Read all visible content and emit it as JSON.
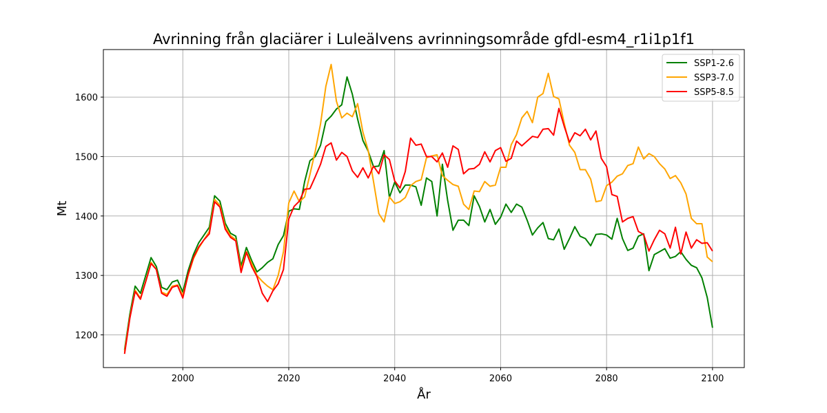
{
  "chart_data": {
    "type": "line",
    "title": "Avrinning från glaciärer i Luleälvens avrinningsområde gfdl-esm4_r1i1p1f1",
    "xlabel": "År",
    "ylabel": "Mt",
    "xlim": [
      1985,
      2106
    ],
    "ylim": [
      1145,
      1680
    ],
    "xticks": [
      2000,
      2020,
      2040,
      2060,
      2080,
      2100
    ],
    "yticks": [
      1200,
      1300,
      1400,
      1500,
      1600
    ],
    "grid": true,
    "legend_position": "top-right",
    "x": [
      1989,
      1990,
      1991,
      1992,
      1993,
      1994,
      1995,
      1996,
      1997,
      1998,
      1999,
      2000,
      2001,
      2002,
      2003,
      2004,
      2005,
      2006,
      2007,
      2008,
      2009,
      2010,
      2011,
      2012,
      2013,
      2014,
      2015,
      2016,
      2017,
      2018,
      2019,
      2020,
      2021,
      2022,
      2023,
      2024,
      2025,
      2026,
      2027,
      2028,
      2029,
      2030,
      2031,
      2032,
      2033,
      2034,
      2035,
      2036,
      2037,
      2038,
      2039,
      2040,
      2041,
      2042,
      2043,
      2044,
      2045,
      2046,
      2047,
      2048,
      2049,
      2050,
      2051,
      2052,
      2053,
      2054,
      2055,
      2056,
      2057,
      2058,
      2059,
      2060,
      2061,
      2062,
      2063,
      2064,
      2065,
      2066,
      2067,
      2068,
      2069,
      2070,
      2071,
      2072,
      2073,
      2074,
      2075,
      2076,
      2077,
      2078,
      2079,
      2080,
      2081,
      2082,
      2083,
      2084,
      2085,
      2086,
      2087,
      2088,
      2089,
      2090,
      2091,
      2092,
      2093,
      2094,
      2095,
      2096,
      2097,
      2098,
      2099,
      2100
    ],
    "series": [
      {
        "name": "SSP1-2.6",
        "color": "#008000",
        "values": [
          1175,
          1235,
          1282,
          1270,
          1300,
          1330,
          1315,
          1280,
          1276,
          1289,
          1292,
          1272,
          1308,
          1335,
          1355,
          1368,
          1381,
          1434,
          1425,
          1388,
          1371,
          1366,
          1316,
          1347,
          1325,
          1306,
          1313,
          1322,
          1328,
          1352,
          1367,
          1408,
          1412,
          1411,
          1458,
          1493,
          1500,
          1519,
          1559,
          1568,
          1580,
          1587,
          1634,
          1605,
          1563,
          1527,
          1509,
          1483,
          1484,
          1510,
          1431,
          1457,
          1439,
          1452,
          1452,
          1449,
          1418,
          1464,
          1458,
          1400,
          1487,
          1426,
          1376,
          1393,
          1393,
          1384,
          1434,
          1416,
          1390,
          1411,
          1386,
          1398,
          1420,
          1406,
          1420,
          1415,
          1393,
          1368,
          1380,
          1389,
          1362,
          1360,
          1378,
          1344,
          1362,
          1382,
          1366,
          1362,
          1350,
          1369,
          1370,
          1368,
          1361,
          1396,
          1362,
          1342,
          1346,
          1366,
          1370,
          1308,
          1335,
          1340,
          1345,
          1329,
          1332,
          1340,
          1327,
          1317,
          1313,
          1296,
          1263,
          1212
        ]
      },
      {
        "name": "SSP3-7.0",
        "color": "#ffa500",
        "values": [
          1172,
          1230,
          1275,
          1262,
          1290,
          1322,
          1310,
          1272,
          1268,
          1282,
          1284,
          1266,
          1300,
          1328,
          1346,
          1360,
          1374,
          1428,
          1418,
          1382,
          1367,
          1360,
          1310,
          1340,
          1320,
          1300,
          1290,
          1282,
          1276,
          1300,
          1340,
          1422,
          1442,
          1424,
          1432,
          1470,
          1509,
          1555,
          1618,
          1655,
          1593,
          1565,
          1573,
          1567,
          1589,
          1541,
          1510,
          1458,
          1404,
          1390,
          1432,
          1421,
          1424,
          1431,
          1451,
          1458,
          1461,
          1498,
          1501,
          1503,
          1468,
          1460,
          1453,
          1450,
          1420,
          1411,
          1442,
          1441,
          1458,
          1450,
          1452,
          1482,
          1482,
          1520,
          1537,
          1565,
          1576,
          1557,
          1600,
          1606,
          1640,
          1601,
          1597,
          1556,
          1519,
          1507,
          1478,
          1478,
          1462,
          1424,
          1426,
          1451,
          1457,
          1467,
          1471,
          1485,
          1488,
          1516,
          1496,
          1505,
          1500,
          1488,
          1479,
          1463,
          1468,
          1456,
          1437,
          1396,
          1387,
          1387,
          1331,
          1323
        ]
      },
      {
        "name": "SSP5-8.5",
        "color": "#ff0000",
        "values": [
          1168,
          1228,
          1273,
          1260,
          1290,
          1320,
          1310,
          1270,
          1265,
          1280,
          1283,
          1262,
          1302,
          1330,
          1348,
          1360,
          1370,
          1424,
          1415,
          1378,
          1364,
          1358,
          1305,
          1339,
          1315,
          1298,
          1270,
          1256,
          1274,
          1286,
          1310,
          1395,
          1416,
          1425,
          1445,
          1446,
          1466,
          1487,
          1517,
          1523,
          1494,
          1507,
          1500,
          1476,
          1465,
          1481,
          1464,
          1484,
          1471,
          1503,
          1495,
          1459,
          1447,
          1475,
          1531,
          1519,
          1521,
          1500,
          1500,
          1491,
          1506,
          1482,
          1518,
          1512,
          1471,
          1479,
          1480,
          1487,
          1508,
          1491,
          1510,
          1515,
          1492,
          1497,
          1526,
          1518,
          1526,
          1534,
          1532,
          1546,
          1547,
          1536,
          1581,
          1551,
          1524,
          1540,
          1535,
          1546,
          1528,
          1543,
          1497,
          1483,
          1436,
          1433,
          1390,
          1396,
          1399,
          1374,
          1369,
          1341,
          1360,
          1376,
          1370,
          1346,
          1381,
          1336,
          1373,
          1346,
          1360,
          1354,
          1355,
          1341
        ]
      }
    ]
  }
}
